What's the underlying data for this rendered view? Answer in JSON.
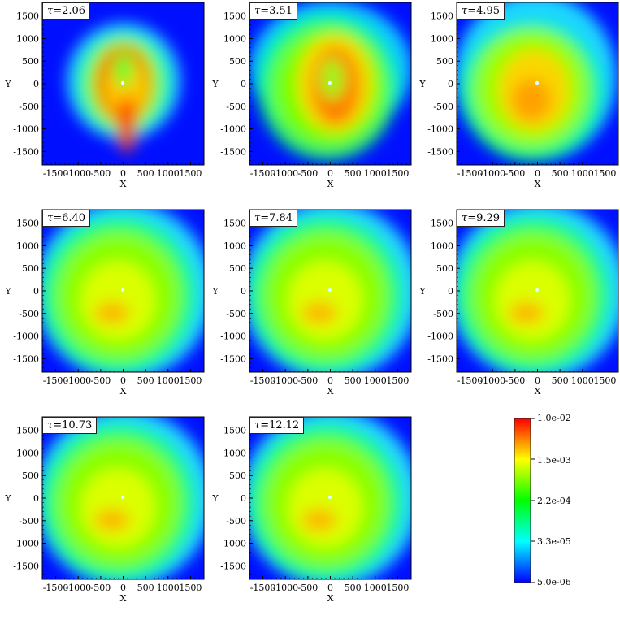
{
  "colormap": {
    "stops": [
      "#0000ff",
      "#00ffff",
      "#00ff00",
      "#ffff00",
      "#ff0000"
    ],
    "labels": [
      "1.0e-02",
      "1.5e-03",
      "2.2e-04",
      "3.3e-05",
      "5.0e-06"
    ]
  },
  "chart_data": [
    {
      "type": "heatmap",
      "title": "τ=2.06",
      "tau_symbol": "τ",
      "tau_value": "=2.06",
      "xlabel": "X",
      "ylabel": "Y",
      "xlim": [
        -1800,
        1800
      ],
      "ylim": [
        -1800,
        1800
      ],
      "xticks": [
        "-1500",
        "-1000",
        "-500",
        "0",
        "500",
        "1000",
        "1500"
      ],
      "yticks": [
        "1500",
        "1000",
        "500",
        "0",
        "-500",
        "-1000",
        "-1500"
      ],
      "colorbar_range": [
        5e-06,
        0.01
      ],
      "colorbar_scale": "log"
    },
    {
      "type": "heatmap",
      "title": "τ=3.51",
      "tau_symbol": "τ",
      "tau_value": "=3.51",
      "xlabel": "X",
      "ylabel": "Y",
      "xlim": [
        -1800,
        1800
      ],
      "ylim": [
        -1800,
        1800
      ],
      "xticks": [
        "-1500",
        "-1000",
        "-500",
        "0",
        "500",
        "1000",
        "1500"
      ],
      "yticks": [
        "1500",
        "1000",
        "500",
        "0",
        "-500",
        "-1000",
        "-1500"
      ],
      "colorbar_range": [
        5e-06,
        0.01
      ],
      "colorbar_scale": "log"
    },
    {
      "type": "heatmap",
      "title": "τ=4.95",
      "tau_symbol": "τ",
      "tau_value": "=4.95",
      "xlabel": "X",
      "ylabel": "Y",
      "xlim": [
        -1800,
        1800
      ],
      "ylim": [
        -1800,
        1800
      ],
      "xticks": [
        "-1500",
        "-1000",
        "-500",
        "0",
        "500",
        "1000",
        "1500"
      ],
      "yticks": [
        "1500",
        "1000",
        "500",
        "0",
        "-500",
        "-1000",
        "-1500"
      ],
      "colorbar_range": [
        5e-06,
        0.01
      ],
      "colorbar_scale": "log"
    },
    {
      "type": "heatmap",
      "title": "τ=6.40",
      "tau_symbol": "τ",
      "tau_value": "=6.40",
      "xlabel": "X",
      "ylabel": "Y",
      "xlim": [
        -1800,
        1800
      ],
      "ylim": [
        -1800,
        1800
      ],
      "xticks": [
        "-1500",
        "-1000",
        "-500",
        "0",
        "500",
        "1000",
        "1500"
      ],
      "yticks": [
        "1500",
        "1000",
        "500",
        "0",
        "-500",
        "-1000",
        "-1500"
      ],
      "colorbar_range": [
        5e-06,
        0.01
      ],
      "colorbar_scale": "log"
    },
    {
      "type": "heatmap",
      "title": "τ=7.84",
      "tau_symbol": "τ",
      "tau_value": "=7.84",
      "xlabel": "X",
      "ylabel": "Y",
      "xlim": [
        -1800,
        1800
      ],
      "ylim": [
        -1800,
        1800
      ],
      "xticks": [
        "-1500",
        "-1000",
        "-500",
        "0",
        "500",
        "1000",
        "1500"
      ],
      "yticks": [
        "1500",
        "1000",
        "500",
        "0",
        "-500",
        "-1000",
        "-1500"
      ],
      "colorbar_range": [
        5e-06,
        0.01
      ],
      "colorbar_scale": "log"
    },
    {
      "type": "heatmap",
      "title": "τ=9.29",
      "tau_symbol": "τ",
      "tau_value": "=9.29",
      "xlabel": "X",
      "ylabel": "Y",
      "xlim": [
        -1800,
        1800
      ],
      "ylim": [
        -1800,
        1800
      ],
      "xticks": [
        "-1500",
        "-1000",
        "-500",
        "0",
        "500",
        "1000",
        "1500"
      ],
      "yticks": [
        "1500",
        "1000",
        "500",
        "0",
        "-500",
        "-1000",
        "-1500"
      ],
      "colorbar_range": [
        5e-06,
        0.01
      ],
      "colorbar_scale": "log"
    },
    {
      "type": "heatmap",
      "title": "τ=10.73",
      "tau_symbol": "τ",
      "tau_value": "=10.73",
      "xlabel": "X",
      "ylabel": "Y",
      "xlim": [
        -1800,
        1800
      ],
      "ylim": [
        -1800,
        1800
      ],
      "xticks": [
        "-1500",
        "-1000",
        "-500",
        "0",
        "500",
        "1000",
        "1500"
      ],
      "yticks": [
        "1500",
        "1000",
        "500",
        "0",
        "-500",
        "-1000",
        "-1500"
      ],
      "colorbar_range": [
        5e-06,
        0.01
      ],
      "colorbar_scale": "log"
    },
    {
      "type": "heatmap",
      "title": "τ=12.12",
      "tau_symbol": "τ",
      "tau_value": "=12.12",
      "xlabel": "X",
      "ylabel": "Y",
      "xlim": [
        -1800,
        1800
      ],
      "ylim": [
        -1800,
        1800
      ],
      "xticks": [
        "-1500",
        "-1000",
        "-500",
        "0",
        "500",
        "1000",
        "1500"
      ],
      "yticks": [
        "1500",
        "1000",
        "500",
        "0",
        "-500",
        "-1000",
        "-1500"
      ],
      "colorbar_range": [
        5e-06,
        0.01
      ],
      "colorbar_scale": "log"
    }
  ]
}
